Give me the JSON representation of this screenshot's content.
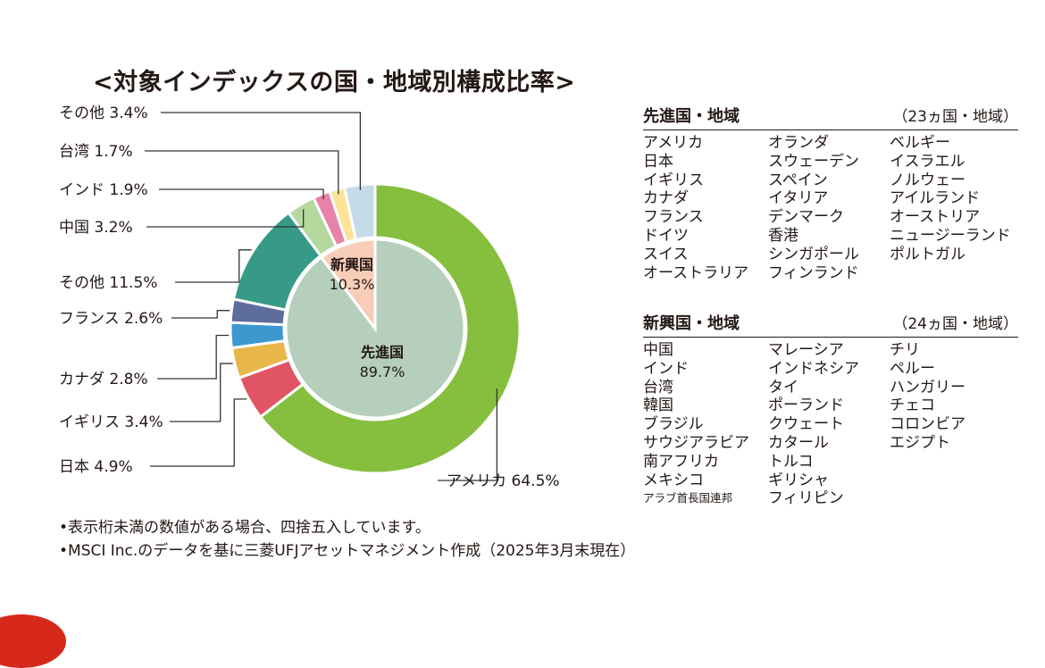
{
  "title": "<対象インデックスの国・地域別構成比率>",
  "chart_data": [
    {
      "type": "pie",
      "ring": "outer",
      "unit": "%",
      "slices": [
        {
          "label": "アメリカ",
          "value": 64.5,
          "label_text": "アメリカ 64.5%",
          "color": "#86be3e"
        },
        {
          "label": "日本",
          "value": 4.9,
          "label_text": "日本 4.9%",
          "color": "#e05564"
        },
        {
          "label": "イギリス",
          "value": 3.4,
          "label_text": "イギリス 3.4%",
          "color": "#e8b74a"
        },
        {
          "label": "カナダ",
          "value": 2.8,
          "label_text": "カナダ 2.8%",
          "color": "#3c98cf"
        },
        {
          "label": "フランス",
          "value": 2.6,
          "label_text": "フランス 2.6%",
          "color": "#5e6e9c"
        },
        {
          "label": "その他",
          "value": 11.5,
          "label_text": "その他 11.5%",
          "color": "#369a86"
        },
        {
          "label": "中国",
          "value": 3.2,
          "label_text": "中国 3.2%",
          "color": "#b4d89e"
        },
        {
          "label": "インド",
          "value": 1.9,
          "label_text": "インド 1.9%",
          "color": "#e782a8"
        },
        {
          "label": "台湾",
          "value": 1.7,
          "label_text": "台湾 1.7%",
          "color": "#fde397"
        },
        {
          "label": "その他",
          "value": 3.4,
          "label_text": "その他 3.4%",
          "color": "#c6dbe9"
        }
      ]
    },
    {
      "type": "pie",
      "ring": "inner",
      "unit": "%",
      "slices": [
        {
          "label": "先進国",
          "value": 89.7,
          "value_text": "89.7%",
          "color": "#b6cfbc"
        },
        {
          "label": "新興国",
          "value": 10.3,
          "value_text": "10.3%",
          "color": "#f8cdb8"
        }
      ]
    }
  ],
  "developed": {
    "title": "先進国・地域",
    "count": "（23ヵ国・地域）",
    "countries": [
      "アメリカ",
      "日本",
      "イギリス",
      "カナダ",
      "フランス",
      "ドイツ",
      "スイス",
      "オーストラリア",
      "オランダ",
      "スウェーデン",
      "スペイン",
      "イタリア",
      "デンマーク",
      "香港",
      "シンガポール",
      "フィンランド",
      "ベルギー",
      "イスラエル",
      "ノルウェー",
      "アイルランド",
      "オーストリア",
      "ニュージーランド",
      "ポルトガル"
    ]
  },
  "emerging": {
    "title": "新興国・地域",
    "count": "（24ヵ国・地域）",
    "countries": [
      "中国",
      "インド",
      "台湾",
      "韓国",
      "ブラジル",
      "サウジアラビア",
      "南アフリカ",
      "メキシコ",
      "アラブ首長国連邦",
      "マレーシア",
      "インドネシア",
      "タイ",
      "ポーランド",
      "クウェート",
      "カタール",
      "トルコ",
      "ギリシャ",
      "フィリピン",
      "チリ",
      "ペルー",
      "ハンガリー",
      "チェコ",
      "コロンビア",
      "エジプト"
    ]
  },
  "notes": [
    "•表示桁未満の数値がある場合、四捨五入しています。",
    "•MSCI Inc.のデータを基に三菱UFJアセットマネジメント作成（2025年3月末現在）"
  ]
}
